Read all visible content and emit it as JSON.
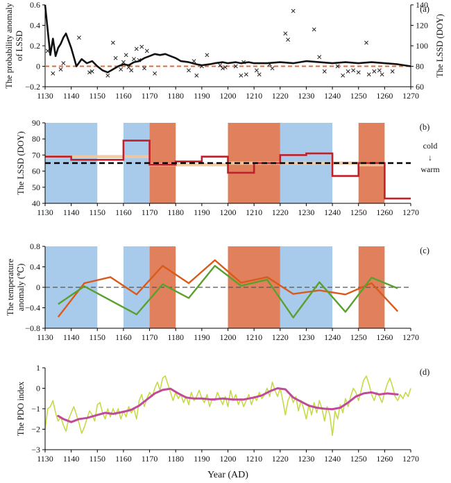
{
  "xlabel": "Year (AD)",
  "xticks": [
    1130,
    1140,
    1150,
    1160,
    1170,
    1180,
    1190,
    1200,
    1210,
    1220,
    1230,
    1240,
    1250,
    1260,
    1270
  ],
  "colors": {
    "blue_band": "#a9cbeb",
    "red_band": "#e0805c",
    "black_line": "#111111",
    "dashed_red": "#e06a3a",
    "step_red": "#c0202a",
    "orange_band": "#f3c79b",
    "orange_line": "#d95a1a",
    "green_line": "#5aa02c",
    "yellow_line": "#c8d948",
    "magenta_line": "#c04a9a"
  },
  "bands": {
    "blue": [
      [
        1130,
        1150
      ],
      [
        1160,
        1170
      ],
      [
        1220,
        1240
      ]
    ],
    "red": [
      [
        1170,
        1180
      ],
      [
        1200,
        1220
      ],
      [
        1250,
        1260
      ]
    ]
  },
  "chart_data": [
    {
      "panel": "(a)",
      "type": "line",
      "ylabel": "The probability anomaly of LSSD",
      "y2label": "The LSSD (DOY)",
      "ylim": [
        -0.2,
        0.6
      ],
      "yticks": [
        -0.2,
        0,
        0.2,
        0.4,
        0.6
      ],
      "yticklabels": [
        "−0.2",
        "0",
        "0.2",
        "0.4",
        "0.6"
      ],
      "y2lim": [
        60,
        140
      ],
      "y2ticks": [
        60,
        80,
        100,
        120,
        140
      ],
      "reference_line": 0,
      "series": [
        {
          "kind": "probability-line",
          "x": [
            1130,
            1131,
            1132,
            1133,
            1134,
            1135,
            1136,
            1137,
            1138,
            1140,
            1142,
            1144,
            1146,
            1148,
            1150,
            1152,
            1154,
            1156,
            1158,
            1160,
            1162,
            1164,
            1166,
            1168,
            1170,
            1172,
            1174,
            1176,
            1178,
            1180,
            1182,
            1185,
            1188,
            1190,
            1193,
            1195,
            1198,
            1200,
            1203,
            1205,
            1208,
            1210,
            1215,
            1220,
            1225,
            1230,
            1235,
            1240,
            1245,
            1250,
            1255,
            1260,
            1265,
            1270
          ],
          "y": [
            0.6,
            0.35,
            0.11,
            0.27,
            0.1,
            0.18,
            0.22,
            0.28,
            0.32,
            0.18,
            0.0,
            0.07,
            0.03,
            0.05,
            0.0,
            -0.04,
            -0.06,
            -0.03,
            0.0,
            0.02,
            0.01,
            0.04,
            0.05,
            0.08,
            0.1,
            0.12,
            0.11,
            0.12,
            0.1,
            0.08,
            0.05,
            0.04,
            0.02,
            0.01,
            0.02,
            0.03,
            0.04,
            0.03,
            0.04,
            0.03,
            0.04,
            0.03,
            0.03,
            0.04,
            0.03,
            0.05,
            0.04,
            0.03,
            0.04,
            0.03,
            0.04,
            0.03,
            0.02,
            0.0
          ]
        },
        {
          "kind": "lssd-markers",
          "marker": "x",
          "axis": "y2",
          "x": [
            1131,
            1133,
            1136,
            1137,
            1143,
            1147,
            1148,
            1154,
            1156,
            1157,
            1159,
            1160,
            1161,
            1162,
            1163,
            1164,
            1165,
            1166,
            1167,
            1168,
            1169,
            1172,
            1185,
            1187,
            1188,
            1190,
            1192,
            1197,
            1198,
            1199,
            1203,
            1205,
            1206,
            1207,
            1211,
            1212,
            1216,
            1217,
            1222,
            1223,
            1225,
            1233,
            1235,
            1237,
            1242,
            1244,
            1246,
            1248,
            1250,
            1253,
            1254,
            1256,
            1258,
            1259,
            1263
          ],
          "y": [
            95,
            73,
            77,
            83,
            108,
            74,
            75,
            71,
            103,
            88,
            77,
            84,
            91,
            79,
            76,
            87,
            97,
            86,
            99,
            78,
            95,
            73,
            76,
            85,
            71,
            80,
            91,
            81,
            78,
            79,
            80,
            71,
            84,
            72,
            76,
            72,
            82,
            78,
            112,
            106,
            134,
            116,
            89,
            75,
            80,
            71,
            75,
            76,
            74,
            103,
            72,
            75,
            76,
            72,
            75
          ]
        }
      ]
    },
    {
      "panel": "(b)",
      "type": "step",
      "ylabel": "The LSSD (DOY)",
      "ylim": [
        40,
        90
      ],
      "yticks": [
        40,
        50,
        60,
        70,
        80,
        90
      ],
      "threshold": 65,
      "annotation": {
        "top": "cold",
        "arrow": "↓",
        "bottom": "warm"
      },
      "series": [
        {
          "kind": "decadal-step",
          "x_edges": [
            1130,
            1140,
            1150,
            1160,
            1170,
            1180,
            1190,
            1200,
            1210,
            1220,
            1230,
            1240,
            1250,
            1260,
            1270
          ],
          "values": [
            69,
            67,
            67,
            79,
            64,
            66,
            69,
            59,
            65,
            70,
            71,
            57,
            65,
            43
          ]
        },
        {
          "kind": "uncertainty-band",
          "segments": [
            [
              1130,
              1170,
              68,
              70
            ],
            [
              1170,
              1200,
              63,
              65
            ],
            [
              1200,
              1250,
              64,
              66
            ],
            [
              1250,
              1260,
              63,
              65
            ]
          ]
        }
      ]
    },
    {
      "panel": "(c)",
      "type": "line",
      "ylabel": "The temperature anomaly (℃)",
      "ylim": [
        -0.8,
        0.8
      ],
      "yticks": [
        -0.8,
        -0.4,
        0,
        0.4,
        0.8
      ],
      "yticklabels": [
        "−0.8",
        "−0.4",
        "0",
        "0.4",
        "0.8"
      ],
      "reference_line": 0,
      "series": [
        {
          "kind": "orange",
          "x": [
            1135,
            1145,
            1155,
            1165,
            1175,
            1185,
            1195,
            1205,
            1215,
            1225,
            1235,
            1245,
            1255,
            1265
          ],
          "y": [
            -0.58,
            0.08,
            0.2,
            -0.14,
            0.42,
            0.08,
            0.53,
            0.09,
            0.2,
            -0.13,
            -0.06,
            -0.14,
            0.08,
            -0.47
          ]
        },
        {
          "kind": "green",
          "x": [
            1135,
            1145,
            1165,
            1175,
            1185,
            1195,
            1205,
            1215,
            1225,
            1235,
            1245,
            1255,
            1265
          ],
          "y": [
            -0.33,
            0.02,
            -0.53,
            0.06,
            -0.21,
            0.42,
            0.03,
            0.15,
            -0.59,
            0.1,
            -0.48,
            0.19,
            -0.02
          ]
        }
      ]
    },
    {
      "panel": "(d)",
      "type": "line",
      "ylabel": "The PDO index",
      "ylim": [
        -3,
        1
      ],
      "yticks": [
        -3,
        -2,
        -1,
        0,
        1
      ],
      "yticklabels": [
        "−3",
        "−2",
        "−1",
        "0",
        "1"
      ],
      "series": [
        {
          "kind": "annual",
          "x": [
            1130,
            1131,
            1132,
            1133,
            1134,
            1135,
            1136,
            1137,
            1138,
            1139,
            1140,
            1141,
            1142,
            1143,
            1144,
            1145,
            1146,
            1147,
            1148,
            1149,
            1150,
            1151,
            1152,
            1153,
            1154,
            1155,
            1156,
            1157,
            1158,
            1159,
            1160,
            1161,
            1162,
            1163,
            1164,
            1165,
            1166,
            1167,
            1168,
            1169,
            1170,
            1171,
            1172,
            1173,
            1174,
            1175,
            1176,
            1177,
            1178,
            1179,
            1180,
            1181,
            1182,
            1183,
            1184,
            1185,
            1186,
            1187,
            1188,
            1189,
            1190,
            1191,
            1192,
            1193,
            1194,
            1195,
            1196,
            1197,
            1198,
            1199,
            1200,
            1201,
            1202,
            1203,
            1204,
            1205,
            1206,
            1207,
            1208,
            1209,
            1210,
            1211,
            1212,
            1213,
            1214,
            1215,
            1216,
            1217,
            1218,
            1219,
            1220,
            1221,
            1222,
            1223,
            1224,
            1225,
            1226,
            1227,
            1228,
            1229,
            1230,
            1231,
            1232,
            1233,
            1234,
            1235,
            1236,
            1237,
            1238,
            1239,
            1240,
            1241,
            1242,
            1243,
            1244,
            1245,
            1246,
            1247,
            1248,
            1249,
            1250,
            1251,
            1252,
            1253,
            1254,
            1255,
            1256,
            1257,
            1258,
            1259,
            1260,
            1261,
            1262,
            1263,
            1264,
            1265,
            1266,
            1267,
            1268,
            1269,
            1270
          ],
          "y": [
            -2.0,
            -1.0,
            -0.9,
            -0.6,
            -1.2,
            -1.6,
            -1.4,
            -1.8,
            -2.1,
            -1.5,
            -1.2,
            -0.9,
            -1.3,
            -1.7,
            -2.2,
            -1.9,
            -1.5,
            -1.1,
            -1.3,
            -1.6,
            -0.8,
            -0.7,
            -1.2,
            -1.5,
            -1.0,
            -1.4,
            -1.0,
            -1.3,
            -1.0,
            -1.5,
            -1.1,
            -1.4,
            -0.9,
            -1.2,
            -1.0,
            -1.5,
            -0.6,
            -0.3,
            -0.9,
            -0.5,
            -0.2,
            -0.4,
            0.0,
            0.3,
            -0.1,
            0.5,
            0.6,
            0.2,
            -0.2,
            -0.6,
            -0.2,
            -0.5,
            -0.3,
            -0.7,
            -0.4,
            -0.8,
            -0.2,
            -0.6,
            -0.4,
            -0.1,
            -0.5,
            -0.7,
            -0.3,
            -0.9,
            -0.5,
            -0.6,
            -0.2,
            -0.5,
            -0.8,
            -0.4,
            -0.9,
            -0.1,
            -0.6,
            -0.3,
            -0.8,
            -0.5,
            -0.9,
            -0.6,
            -0.3,
            -0.8,
            -0.4,
            -0.6,
            -0.2,
            -0.5,
            -0.3,
            0.0,
            -0.4,
            0.3,
            -0.1,
            -0.4,
            0.0,
            -0.6,
            -1.3,
            -0.6,
            -0.3,
            -0.7,
            -0.4,
            -1.1,
            -0.6,
            -1.0,
            -1.5,
            -0.8,
            -1.3,
            -0.7,
            -1.2,
            -0.6,
            -1.0,
            -1.6,
            -0.9,
            -1.3,
            -2.3,
            -1.1,
            -1.5,
            -0.8,
            -1.2,
            -0.5,
            -0.9,
            -0.4,
            0.0,
            -0.2,
            -0.6,
            -0.1,
            0.4,
            0.6,
            0.2,
            -0.3,
            -0.6,
            -0.2,
            -0.4,
            -0.7,
            -0.2,
            0.2,
            0.5,
            0.1,
            -0.4,
            -0.6,
            -0.3,
            -0.5,
            -0.2,
            -0.4,
            0.0
          ]
        },
        {
          "kind": "smoothed",
          "x": [
            1135,
            1137,
            1140,
            1143,
            1146,
            1150,
            1153,
            1156,
            1160,
            1163,
            1166,
            1169,
            1172,
            1175,
            1178,
            1181,
            1184,
            1187,
            1190,
            1194,
            1198,
            1202,
            1206,
            1210,
            1213,
            1216,
            1219,
            1222,
            1225,
            1228,
            1231,
            1234,
            1237,
            1240,
            1243,
            1246,
            1249,
            1252,
            1255,
            1258,
            1261,
            1265
          ],
          "y": [
            -1.35,
            -1.5,
            -1.65,
            -1.5,
            -1.45,
            -1.3,
            -1.2,
            -1.25,
            -1.15,
            -1.05,
            -0.85,
            -0.55,
            -0.25,
            -0.08,
            -0.02,
            -0.25,
            -0.45,
            -0.5,
            -0.5,
            -0.55,
            -0.5,
            -0.55,
            -0.55,
            -0.45,
            -0.35,
            -0.15,
            0.0,
            -0.05,
            -0.45,
            -0.65,
            -0.85,
            -0.95,
            -1.0,
            -1.02,
            -0.95,
            -0.7,
            -0.4,
            -0.25,
            -0.2,
            -0.3,
            -0.25,
            -0.3
          ]
        }
      ]
    }
  ]
}
